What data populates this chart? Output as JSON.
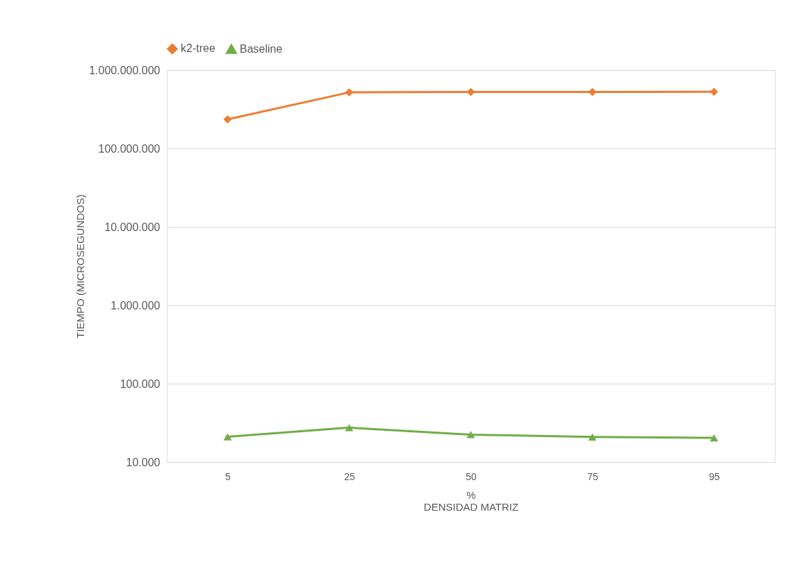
{
  "chart_data": {
    "type": "line",
    "xlabel": "DENSIDAD MATRIZ",
    "ylabel": "TIEMPO (MICROSEGUNDOS)",
    "annotations": [
      "%"
    ],
    "categories": [
      "5",
      "25",
      "50",
      "75",
      "95"
    ],
    "series": [
      {
        "name": "k2-tree",
        "color": "#ed7d31",
        "marker": "diamond",
        "values": [
          235000000,
          520000000,
          525000000,
          525000000,
          528000000
        ]
      },
      {
        "name": "Baseline",
        "color": "#70ad47",
        "marker": "triangle",
        "values": [
          21000,
          27500,
          22400,
          20900,
          20400
        ]
      }
    ],
    "log": true,
    "ylim": [
      10000,
      1000000000
    ],
    "yticks": [
      {
        "value": 10000,
        "label": "10.000"
      },
      {
        "value": 100000,
        "label": "100.000"
      },
      {
        "value": 1000000,
        "label": "1.000.000"
      },
      {
        "value": 10000000,
        "label": "10.000.000"
      },
      {
        "value": 100000000,
        "label": "100.000.000"
      },
      {
        "value": 1000000000,
        "label": "1.000.000.000"
      }
    ],
    "grid": "y",
    "legend": "top",
    "line_style": "solid"
  }
}
